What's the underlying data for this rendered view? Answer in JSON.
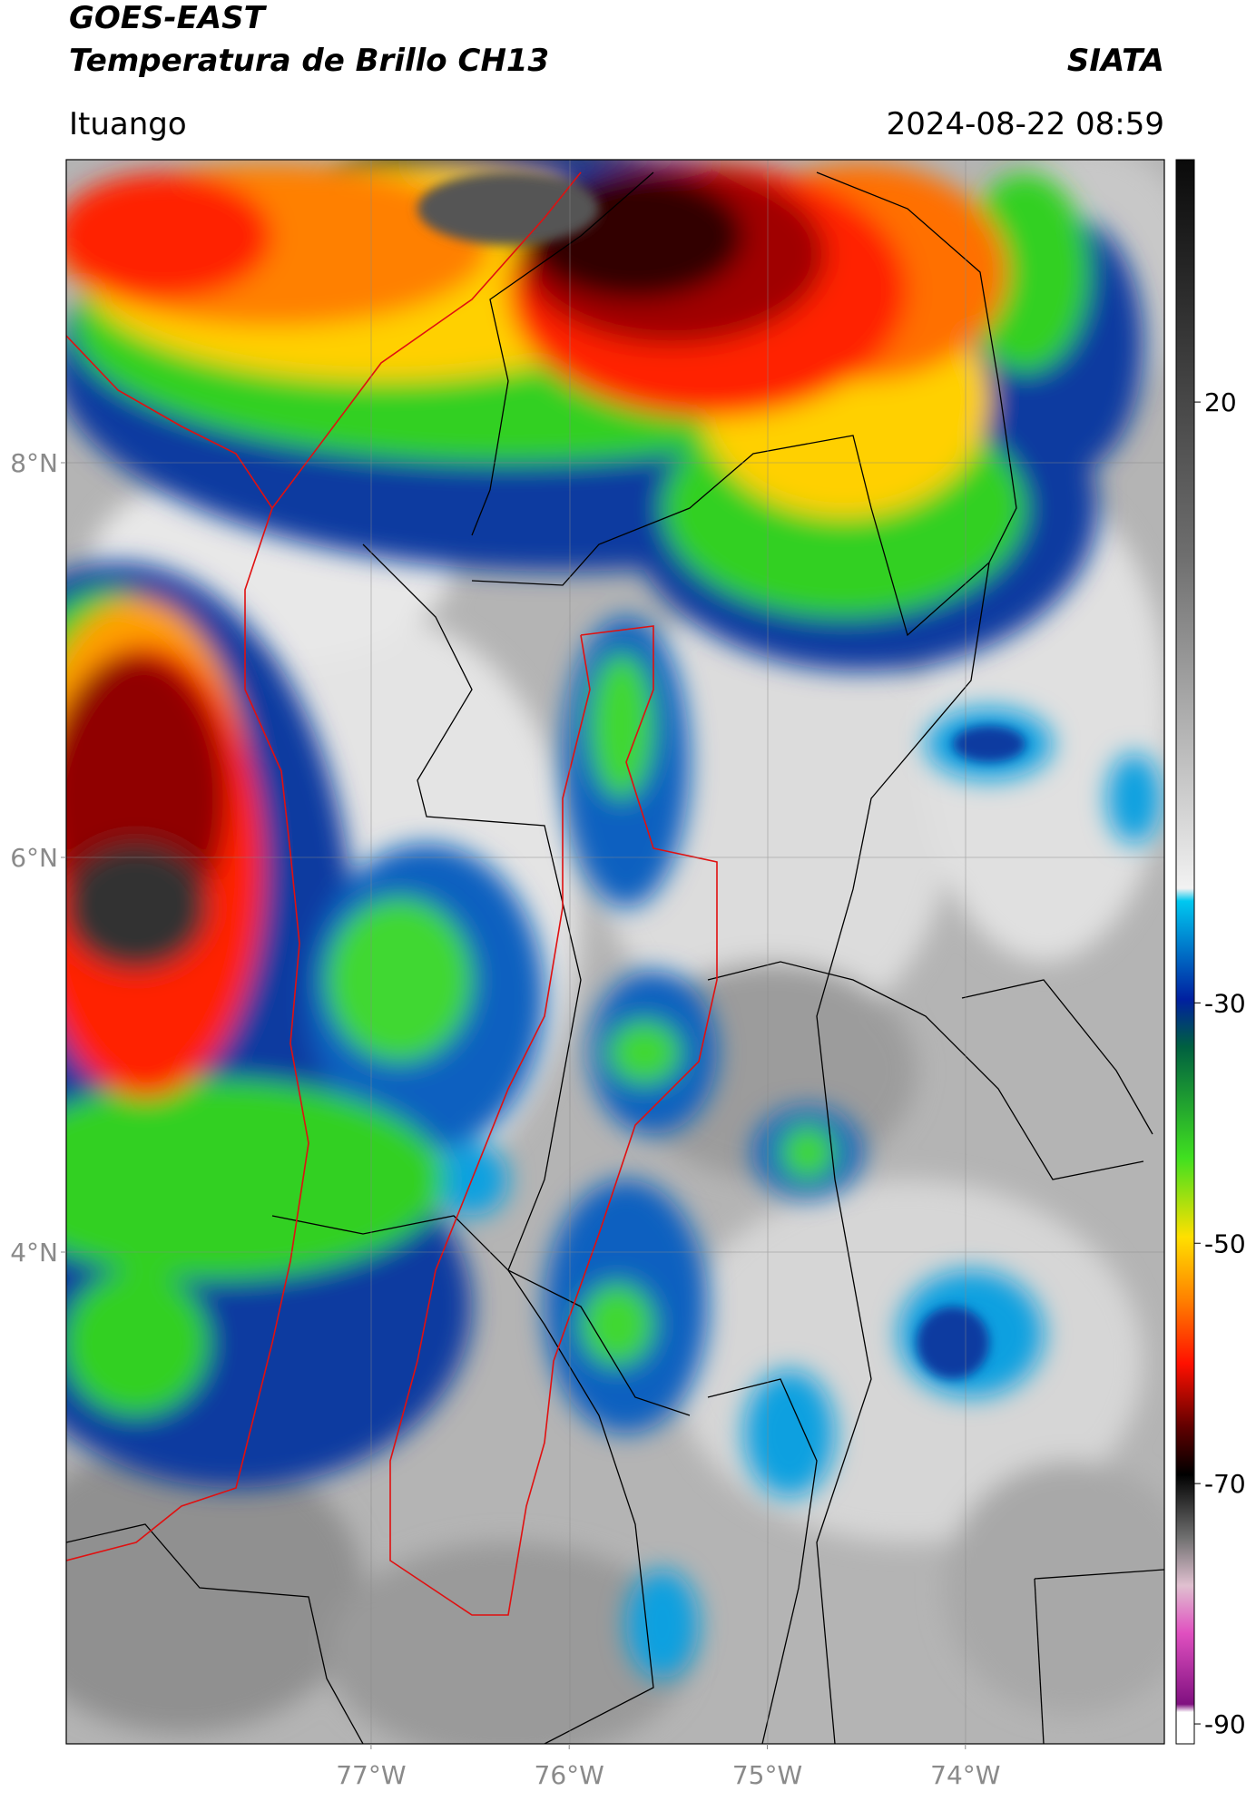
{
  "header": {
    "title": "GOES-EAST",
    "subtitle": "Temperatura de Brillo CH13",
    "source": "SIATA",
    "location": "Ituango",
    "datetime": "2024-08-22 08:59"
  },
  "map": {
    "lat_ticks": [
      {
        "value": 8,
        "label": "8°N"
      },
      {
        "value": 6,
        "label": "6°N"
      },
      {
        "value": 4,
        "label": "4°N"
      }
    ],
    "lon_ticks": [
      {
        "value": -77,
        "label": "77°W"
      },
      {
        "value": -76,
        "label": "76°W"
      },
      {
        "value": -75,
        "label": "75°W"
      },
      {
        "value": -74,
        "label": "74°W"
      }
    ]
  },
  "colorbar": {
    "ticks": [
      20,
      -30,
      -50,
      -70,
      -90
    ]
  }
}
